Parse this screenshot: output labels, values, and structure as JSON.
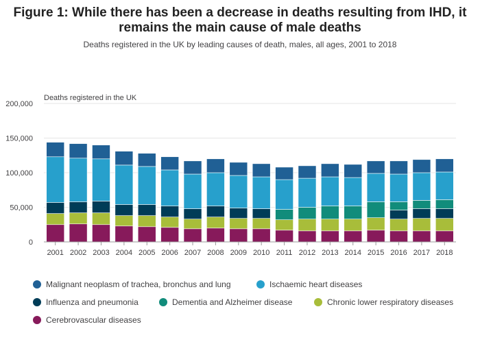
{
  "title_lines": [
    "Figure 1: While there has been a decrease in deaths resulting from IHD, it",
    "remains the main cause of male deaths"
  ],
  "subtitle": "Deaths registered in the UK by leading causes of death, males, all ages, 2001 to 2018",
  "chart_data": {
    "type": "bar",
    "stacked": true,
    "title": "Figure 1: While there has been a decrease in deaths resulting from IHD, it remains the main cause of male deaths",
    "subtitle": "Deaths registered in the UK by leading causes of death, males, all ages, 2001 to 2018",
    "ylabel": "Deaths registered in the UK",
    "xlabel": "",
    "ylim": [
      0,
      200000
    ],
    "yticks": [
      "0",
      "50,000",
      "100,000",
      "150,000",
      "200,000"
    ],
    "grid": true,
    "legend_position": "bottom",
    "categories": [
      "2001",
      "2002",
      "2003",
      "2004",
      "2005",
      "2006",
      "2007",
      "2008",
      "2009",
      "2010",
      "2011",
      "2012",
      "2013",
      "2014",
      "2015",
      "2016",
      "2017",
      "2018"
    ],
    "series": [
      {
        "name": "Cerebrovascular diseases",
        "color": "#871a5b",
        "values": [
          25000,
          26000,
          25000,
          23000,
          22000,
          21000,
          19000,
          20000,
          19000,
          19000,
          17000,
          16000,
          16000,
          16000,
          17000,
          16000,
          16000,
          16000
        ]
      },
      {
        "name": "Chronic lower respiratory diseases",
        "color": "#a8bd3a",
        "values": [
          16000,
          16000,
          17000,
          15000,
          16000,
          15000,
          14000,
          16000,
          15000,
          15000,
          15000,
          17000,
          17000,
          17000,
          18000,
          17000,
          18000,
          18000
        ]
      },
      {
        "name": "Influenza and pneumonia",
        "color": "#003c57",
        "values": [
          16000,
          16000,
          17000,
          16000,
          16000,
          16000,
          15000,
          16000,
          15000,
          14000,
          0,
          0,
          0,
          0,
          0,
          13000,
          14000,
          14000
        ]
      },
      {
        "name": "Dementia and Alzheimer disease",
        "color": "#118c7b",
        "values": [
          0,
          0,
          0,
          0,
          0,
          0,
          0,
          0,
          0,
          0,
          15000,
          17000,
          19000,
          19000,
          23000,
          12000,
          12000,
          13000
        ]
      },
      {
        "name": "Ischaemic heart diseases",
        "color": "#27a0cc",
        "values": [
          66000,
          63000,
          61000,
          57000,
          55000,
          52000,
          50000,
          48000,
          47000,
          46000,
          43000,
          42000,
          42000,
          41000,
          41000,
          40000,
          40000,
          40000
        ]
      },
      {
        "name": "Malignant neoplasm of trachea, bronchus and lung",
        "color": "#206095",
        "values": [
          21000,
          21000,
          20000,
          20000,
          19000,
          19000,
          19000,
          20000,
          19000,
          19000,
          18000,
          18000,
          19000,
          19000,
          18000,
          19000,
          19000,
          19000
        ]
      }
    ]
  },
  "legend": {
    "items": [
      {
        "label": "Malignant neoplasm of trachea, bronchus and lung",
        "color": "#206095"
      },
      {
        "label": "Ischaemic heart diseases",
        "color": "#27a0cc"
      },
      {
        "label": "Influenza and pneumonia",
        "color": "#003c57"
      },
      {
        "label": "Dementia and Alzheimer disease",
        "color": "#118c7b"
      },
      {
        "label": "Chronic lower respiratory diseases",
        "color": "#a8bd3a"
      },
      {
        "label": "Cerebrovascular diseases",
        "color": "#871a5b"
      }
    ]
  }
}
